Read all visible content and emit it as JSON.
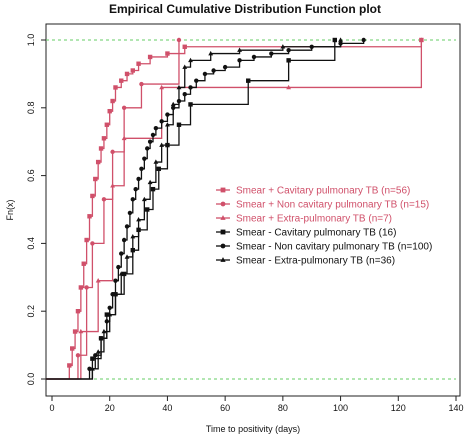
{
  "chart_data": {
    "type": "line",
    "title": "Empirical Cumulative Distribution Function plot",
    "xlabel": "Time to positivity (days)",
    "ylabel": "Fn(x)",
    "xlim": [
      0,
      140
    ],
    "ylim": [
      0,
      1
    ],
    "x_ticks": [
      "0",
      "20",
      "40",
      "60",
      "80",
      "100",
      "120",
      "140"
    ],
    "y_ticks": [
      "0.0",
      "0.2",
      "0.4",
      "0.6",
      "0.8",
      "1.0"
    ],
    "reference_lines": [
      0,
      1
    ],
    "reference_line_color": "#66cc66",
    "grid": false,
    "legend_position": "right",
    "series": [
      {
        "name": "Smear + Cavitary pulmonary TB (n=56)",
        "color": "#d0506a",
        "marker": "square",
        "x": [
          6,
          7,
          8,
          9,
          10,
          11,
          12,
          13,
          14,
          15,
          16,
          17,
          18,
          19,
          20,
          21,
          22,
          24,
          26,
          28,
          30,
          34,
          40,
          46,
          128
        ],
        "y": [
          0.04,
          0.09,
          0.14,
          0.2,
          0.27,
          0.34,
          0.41,
          0.48,
          0.54,
          0.59,
          0.64,
          0.68,
          0.71,
          0.75,
          0.79,
          0.82,
          0.86,
          0.88,
          0.9,
          0.91,
          0.93,
          0.95,
          0.96,
          0.98,
          1.0
        ]
      },
      {
        "name": "Smear + Non cavitary pulmonary TB (n=15)",
        "color": "#d0506a",
        "marker": "circle",
        "x": [
          9,
          12,
          14,
          18,
          21,
          25,
          31,
          44
        ],
        "y": [
          0.07,
          0.27,
          0.4,
          0.53,
          0.67,
          0.8,
          0.87,
          1.0
        ]
      },
      {
        "name": "Smear + Extra-pulmonary TB (n=7)",
        "color": "#d0506a",
        "marker": "triangle",
        "x": [
          10,
          16,
          21,
          25,
          38,
          82,
          128
        ],
        "y": [
          0.14,
          0.29,
          0.57,
          0.71,
          0.86,
          0.86,
          1.0
        ]
      },
      {
        "name": "Smear - Cavitary pulmonary TB (16)",
        "color": "#111111",
        "marker": "square",
        "x": [
          14,
          17,
          19,
          22,
          25,
          28,
          30,
          33,
          35,
          37,
          40,
          44,
          48,
          68,
          82,
          98
        ],
        "y": [
          0.06,
          0.12,
          0.19,
          0.25,
          0.31,
          0.38,
          0.44,
          0.5,
          0.56,
          0.62,
          0.69,
          0.75,
          0.81,
          0.88,
          0.94,
          1.0
        ]
      },
      {
        "name": "Smear - Non cavitary pulmonary TB (n=100)",
        "color": "#111111",
        "marker": "circle",
        "x": [
          13,
          15,
          17,
          19,
          20,
          21,
          22,
          23,
          24,
          25,
          26,
          27,
          28,
          29,
          30,
          31,
          32,
          33,
          34,
          35,
          36,
          38,
          40,
          42,
          44,
          46,
          48,
          50,
          53,
          56,
          60,
          65,
          70,
          76,
          82,
          90,
          100,
          108
        ],
        "y": [
          0.03,
          0.07,
          0.12,
          0.17,
          0.21,
          0.25,
          0.29,
          0.33,
          0.37,
          0.41,
          0.45,
          0.49,
          0.53,
          0.56,
          0.59,
          0.62,
          0.65,
          0.68,
          0.7,
          0.72,
          0.74,
          0.76,
          0.78,
          0.8,
          0.82,
          0.84,
          0.86,
          0.88,
          0.9,
          0.91,
          0.92,
          0.94,
          0.95,
          0.96,
          0.97,
          0.98,
          0.99,
          1.0
        ]
      },
      {
        "name": "Smear - Extra-pulmonary TB (n=36)",
        "color": "#111111",
        "marker": "triangle",
        "x": [
          14,
          16,
          18,
          20,
          22,
          24,
          26,
          28,
          30,
          32,
          34,
          36,
          38,
          40,
          42,
          44,
          46,
          48,
          55,
          65,
          80,
          100
        ],
        "y": [
          0.03,
          0.08,
          0.14,
          0.19,
          0.25,
          0.31,
          0.36,
          0.42,
          0.47,
          0.53,
          0.58,
          0.64,
          0.69,
          0.75,
          0.81,
          0.86,
          0.92,
          0.94,
          0.96,
          0.97,
          0.98,
          1.0
        ]
      }
    ]
  }
}
